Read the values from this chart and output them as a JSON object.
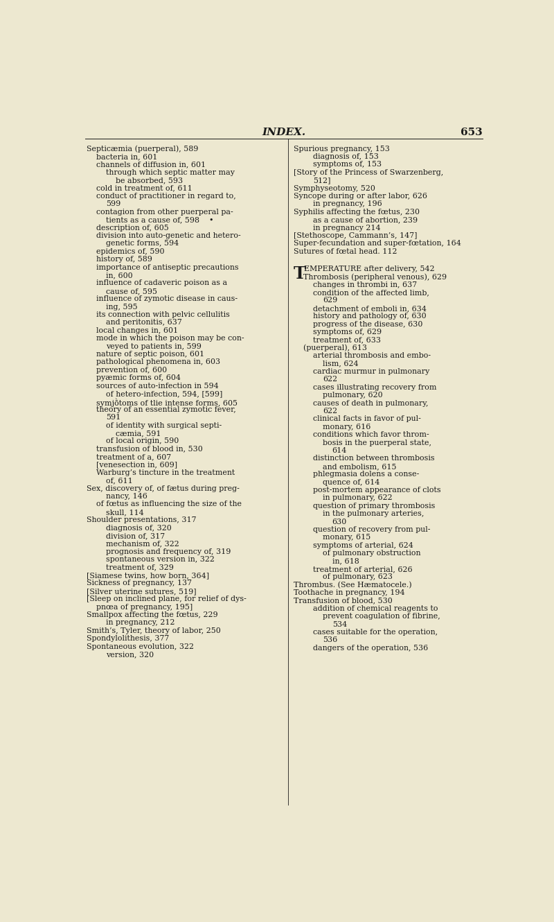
{
  "background_color": "#ede8d0",
  "text_color": "#1a1a1a",
  "page_title": "INDEX.",
  "page_number": "653",
  "left_column": [
    [
      0,
      "Septicæmia (puerperal), 589"
    ],
    [
      1,
      "bacteria in, 601"
    ],
    [
      1,
      "channels of diffusion in, 601"
    ],
    [
      2,
      "through which septic matter may"
    ],
    [
      3,
      "be absorbed, 593"
    ],
    [
      1,
      "cold in treatment of, 611"
    ],
    [
      1,
      "conduct of practitioner in regard to,"
    ],
    [
      2,
      "599"
    ],
    [
      1,
      "contagion from other puerperal pa-"
    ],
    [
      2,
      "tients as a cause of, 598    •"
    ],
    [
      1,
      "description of, 605"
    ],
    [
      1,
      "division into auto-genetic and hetero-"
    ],
    [
      2,
      "genetic forms, 594"
    ],
    [
      1,
      "epidemics of, 590"
    ],
    [
      1,
      "history of, 589"
    ],
    [
      1,
      "importance of antiseptic precautions"
    ],
    [
      2,
      "in, 600"
    ],
    [
      1,
      "influence of cadaveric poison as a"
    ],
    [
      2,
      "cause of, 595"
    ],
    [
      1,
      "influence of zymotic disease in caus-"
    ],
    [
      2,
      "ing, 595"
    ],
    [
      1,
      "its connection with pelvic cellulitis"
    ],
    [
      2,
      "and peritonitis, 637"
    ],
    [
      1,
      "local changes in, 601"
    ],
    [
      1,
      "mode in which the poison may be con-"
    ],
    [
      2,
      "veyed to patients in, 599"
    ],
    [
      1,
      "nature of septic poison, 601"
    ],
    [
      1,
      "pathological phenomena in, 603"
    ],
    [
      1,
      "prevention of, 600"
    ],
    [
      1,
      "pyæmic forms of, 604"
    ],
    [
      1,
      "sources of auto-infection in 594"
    ],
    [
      2,
      "of hetero-infection, 594, [599]"
    ],
    [
      1,
      "symjṑtoms of tlie intense forms, 605"
    ],
    [
      1,
      "theory of an essential zymotic fever,"
    ],
    [
      2,
      "591"
    ],
    [
      2,
      "of identity with surgical septi-"
    ],
    [
      3,
      "cæmia, 591"
    ],
    [
      2,
      "of local origin, 590"
    ],
    [
      1,
      "transfusion of blood in, 530"
    ],
    [
      1,
      "treatment of a, 607"
    ],
    [
      1,
      "[venesection in, 609]"
    ],
    [
      1,
      "Warburg’s tincture in the treatment"
    ],
    [
      2,
      "of, 611"
    ],
    [
      0,
      "Sex, discovery of, of fætus during preg-"
    ],
    [
      2,
      "nancy, 146"
    ],
    [
      1,
      "of fœtus as influencing the size of the"
    ],
    [
      2,
      "skull, 114"
    ],
    [
      0,
      "Shoulder presentations, 317"
    ],
    [
      2,
      "diagnosis of, 320"
    ],
    [
      2,
      "division of, 317"
    ],
    [
      2,
      "mechanism of, 322"
    ],
    [
      2,
      "prognosis and frequency of, 319"
    ],
    [
      2,
      "spontaneous version in, 322"
    ],
    [
      2,
      "treatment of, 329"
    ],
    [
      0,
      "[Siamese twins, how born, 364]"
    ],
    [
      0,
      "Sickness of pregnancy, 137"
    ],
    [
      0,
      "[Silver uterine sutures, 519]"
    ],
    [
      0,
      "[Sleep on inclined plane, for relief of dys-"
    ],
    [
      1,
      "pnœa of pregnancy, 195]"
    ],
    [
      0,
      "Smallpox affecting the fœtus, 229"
    ],
    [
      2,
      "in pregnancy, 212"
    ],
    [
      0,
      "Smith’s, Tyler, theory of labor, 250"
    ],
    [
      0,
      "Spondylolithesis, 377"
    ],
    [
      0,
      "Spontaneous evolution, 322"
    ],
    [
      2,
      "version, 320"
    ]
  ],
  "right_column": [
    [
      0,
      "Spurious pregnancy, 153"
    ],
    [
      2,
      "diagnosis of, 153"
    ],
    [
      2,
      "symptoms of, 153"
    ],
    [
      0,
      "[Story of the Princess of Swarzenberg,"
    ],
    [
      2,
      "512]"
    ],
    [
      0,
      "Symphyseotomy, 520"
    ],
    [
      0,
      "Syncope during or after labor, 626"
    ],
    [
      2,
      "in pregnancy, 196"
    ],
    [
      0,
      "Syphilis affecting the fœtus, 230"
    ],
    [
      2,
      "as a cause of abortion, 239"
    ],
    [
      2,
      "in pregnancy 214"
    ],
    [
      0,
      "[Stethoscope, Cammann’s, 147]"
    ],
    [
      0,
      "Super-fecundation and super-fœtation, 164"
    ],
    [
      0,
      "Sutures of fœtal head. 112"
    ],
    [
      -1,
      ""
    ],
    [
      -1,
      ""
    ],
    [
      -2,
      "TEMPERATURE after delivery, 542"
    ],
    [
      1,
      "Thrombosis (peripheral venous), 629"
    ],
    [
      2,
      "changes in thrombi in, 637"
    ],
    [
      2,
      "condition of the affected limb,"
    ],
    [
      3,
      "629"
    ],
    [
      2,
      "detachment of emboli in, 634"
    ],
    [
      2,
      "history and pathology of, 630"
    ],
    [
      2,
      "progress of the disease, 630"
    ],
    [
      2,
      "symptoms of, 629"
    ],
    [
      2,
      "treatment of, 633"
    ],
    [
      1,
      "(puerperal), 613"
    ],
    [
      2,
      "arterial thrombosis and embo-"
    ],
    [
      3,
      "lism, 624"
    ],
    [
      2,
      "cardiac murmur in pulmonary"
    ],
    [
      3,
      "622"
    ],
    [
      2,
      "cases illustrating recovery from"
    ],
    [
      3,
      "pulmonary, 620"
    ],
    [
      2,
      "causes of death in pulmonary,"
    ],
    [
      3,
      "622"
    ],
    [
      2,
      "clinical facts in favor of pul-"
    ],
    [
      3,
      "monary, 616"
    ],
    [
      2,
      "conditions which favor throm-"
    ],
    [
      3,
      "bosis in the puerperal state,"
    ],
    [
      4,
      "614"
    ],
    [
      2,
      "distinction between thrombosis"
    ],
    [
      3,
      "and embolism, 615"
    ],
    [
      2,
      "phlegmasia dolens a conse-"
    ],
    [
      3,
      "quence of, 614"
    ],
    [
      2,
      "post-mortem appearance of clots"
    ],
    [
      3,
      "in pulmonary, 622"
    ],
    [
      2,
      "question of primary thrombosis"
    ],
    [
      3,
      "in the pulmonary arteries,"
    ],
    [
      4,
      "630"
    ],
    [
      2,
      "question of recovery from pul-"
    ],
    [
      3,
      "monary, 615"
    ],
    [
      2,
      "symptoms of arterial, 624"
    ],
    [
      3,
      "of pulmonary obstruction"
    ],
    [
      4,
      "in, 618"
    ],
    [
      2,
      "treatment of arterial, 626"
    ],
    [
      3,
      "of pulmonary, 623"
    ],
    [
      0,
      "Thrombus. (See Hæmatocele.)"
    ],
    [
      0,
      "Toothache in pregnancy, 194"
    ],
    [
      0,
      "Transfusion of blood, 530"
    ],
    [
      2,
      "addition of chemical reagents to"
    ],
    [
      3,
      "prevent coagulation of fibrine,"
    ],
    [
      4,
      "534"
    ],
    [
      2,
      "cases suitable for the operation,"
    ],
    [
      3,
      "536"
    ],
    [
      2,
      "dangers of the operation, 536"
    ]
  ]
}
